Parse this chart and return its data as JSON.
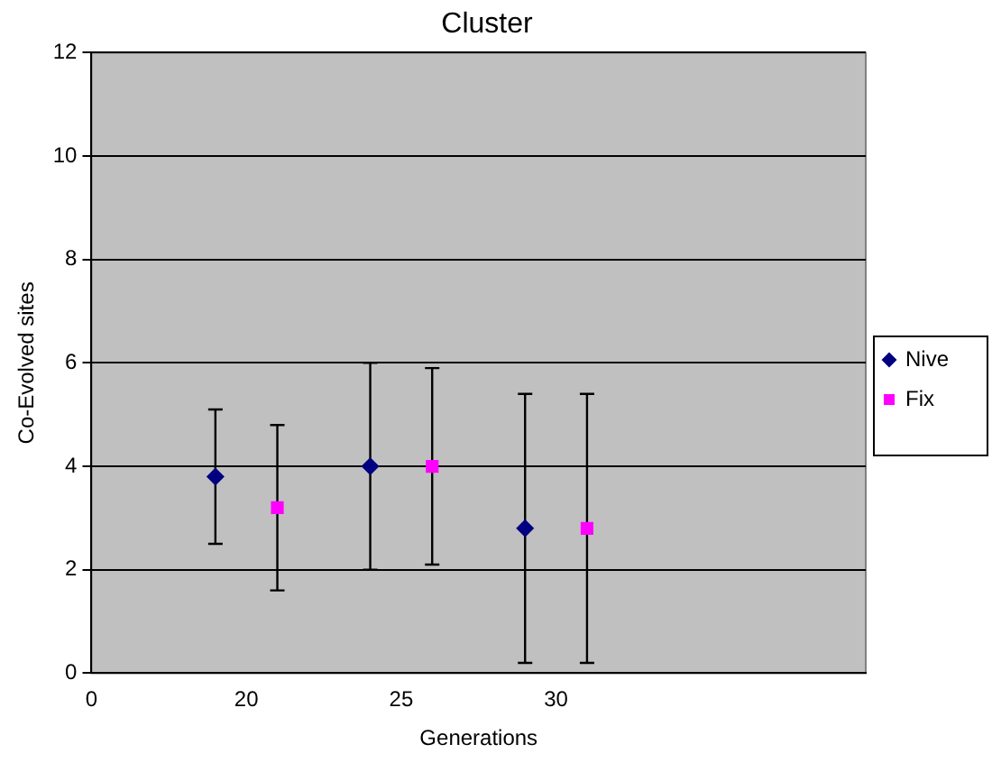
{
  "chart_data": {
    "type": "scatter",
    "title": "Cluster",
    "xlabel": "Generations",
    "ylabel": "Co-Evolved sites",
    "categories": [
      "0",
      "20",
      "25",
      "30",
      null,
      null
    ],
    "series": [
      {
        "name": "Nive",
        "color": "#000080",
        "marker": "diamond",
        "values": [
          null,
          3.8,
          4.0,
          2.8,
          null,
          null
        ],
        "errors": [
          null,
          1.3,
          2.0,
          2.6,
          null,
          null
        ]
      },
      {
        "name": "Fix",
        "color": "#ff00ff",
        "marker": "square",
        "values": [
          null,
          3.2,
          4.0,
          2.8,
          null,
          null
        ],
        "errors": [
          null,
          1.6,
          1.9,
          2.6,
          null,
          null
        ]
      }
    ],
    "ylim": [
      0,
      12
    ],
    "yticks": [
      0,
      2,
      4,
      6,
      8,
      10,
      12
    ],
    "grid": "y",
    "legend": "right"
  }
}
